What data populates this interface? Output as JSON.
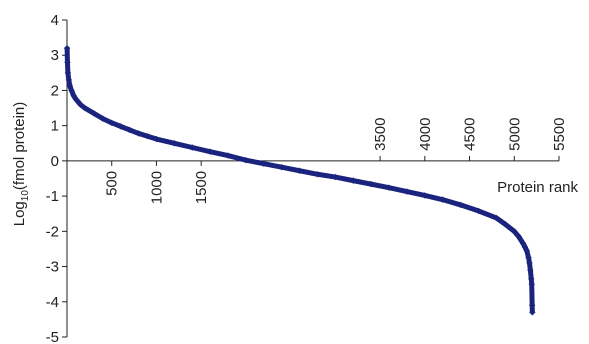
{
  "chart_data": {
    "type": "scatter",
    "title": "",
    "xlabel": "Protein rank",
    "ylabel": "Log",
    "ylabel_sub": "10",
    "ylabel_suffix": "(fmol protein)",
    "xlim": [
      0,
      5500
    ],
    "ylim": [
      -5,
      4
    ],
    "grid": false,
    "x_ticks": [
      "500",
      "1000",
      "1500",
      "3500",
      "4000",
      "4500",
      "5000",
      "5500"
    ],
    "y_ticks": [
      "4",
      "3",
      "2",
      "1",
      "0",
      "-1",
      "-2",
      "-3",
      "-4",
      "-5"
    ],
    "marker_color": "#1a237e",
    "series": [
      {
        "x": [
          1,
          5,
          10,
          20,
          30,
          50,
          75,
          100,
          150,
          200,
          300,
          400,
          500,
          600,
          700,
          800,
          900,
          1000,
          1200,
          1400,
          1600,
          1800,
          2000,
          2200,
          2400,
          2600,
          2800,
          3000,
          3200,
          3400,
          3600,
          3800,
          4000,
          4200,
          4400,
          4600,
          4800,
          4900,
          5000,
          5050,
          5100,
          5120,
          5140,
          5160,
          5170,
          5180,
          5190,
          5195,
          5200,
          5202
        ],
        "y": [
          3.2,
          2.8,
          2.5,
          2.3,
          2.15,
          2.0,
          1.85,
          1.75,
          1.6,
          1.5,
          1.35,
          1.2,
          1.08,
          0.98,
          0.88,
          0.78,
          0.7,
          0.62,
          0.5,
          0.38,
          0.26,
          0.15,
          0.02,
          -0.08,
          -0.18,
          -0.28,
          -0.38,
          -0.46,
          -0.56,
          -0.66,
          -0.76,
          -0.87,
          -0.98,
          -1.1,
          -1.25,
          -1.42,
          -1.62,
          -1.8,
          -2.0,
          -2.15,
          -2.35,
          -2.45,
          -2.55,
          -2.75,
          -2.9,
          -3.1,
          -3.35,
          -3.5,
          -4.1,
          -4.3
        ]
      }
    ]
  }
}
